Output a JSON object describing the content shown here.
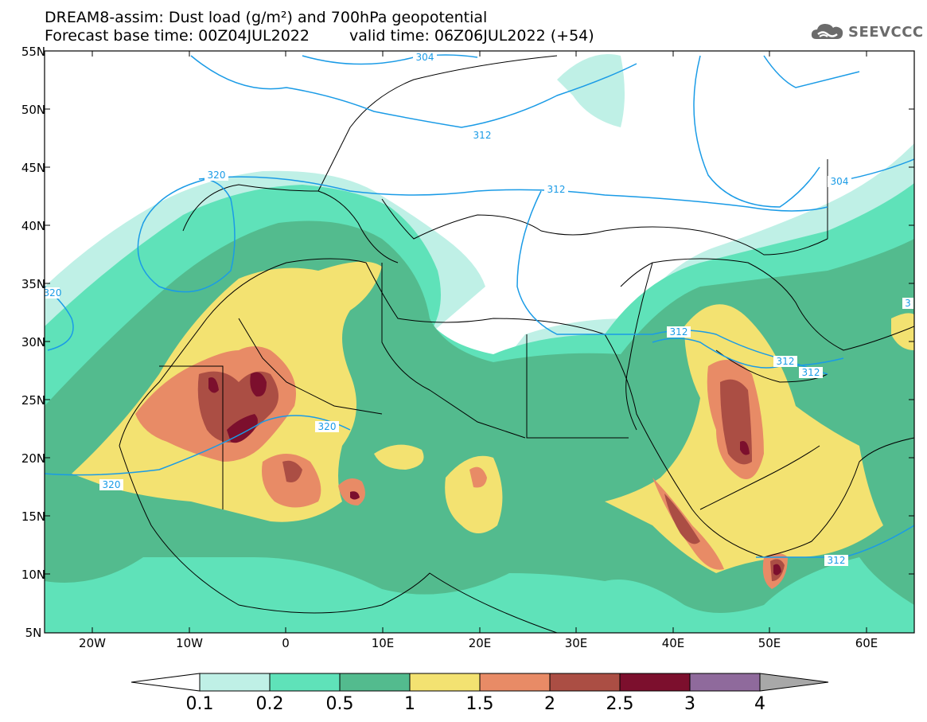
{
  "header": {
    "title_line1": "DREAM8-assim: Dust load (g/m²) and 700hPa geopotential",
    "base_time": "Forecast base time: 00Z04JUL2022",
    "valid_time": "valid time: 06Z06JUL2022 (+54)"
  },
  "logo": {
    "text": "SEEVCCC",
    "icon": "cloud-icon"
  },
  "map": {
    "lat_labels": [
      "55N",
      "50N",
      "45N",
      "40N",
      "35N",
      "30N",
      "25N",
      "20N",
      "15N",
      "10N",
      "5N"
    ],
    "lon_labels": [
      "20W",
      "10W",
      "0",
      "10E",
      "20E",
      "30E",
      "40E",
      "50E",
      "60E"
    ],
    "contour_labels": [
      "304",
      "312",
      "320",
      "312",
      "320",
      "320",
      "304",
      "312",
      "312",
      "312",
      "312",
      "320",
      "3"
    ],
    "colors": {
      "background": "#ffffff",
      "c01": "#bff0e6",
      "c02": "#5fe2b9",
      "c05": "#53bb8e",
      "c10": "#f3e271",
      "c15": "#e88b66",
      "c20": "#ab4e44",
      "c25": "#7c0f2d",
      "c30": "#8f6a9c",
      "contour": "#1a9be6"
    }
  },
  "colorbar": {
    "labels": [
      "0.1",
      "0.2",
      "0.5",
      "1",
      "1.5",
      "2",
      "2.5",
      "3",
      "4"
    ],
    "colors": [
      "#bff0e6",
      "#5fe2b9",
      "#53bb8e",
      "#f3e271",
      "#e88b66",
      "#ab4e44",
      "#7c0f2d",
      "#8f6a9c",
      "#a8a8a8"
    ]
  }
}
